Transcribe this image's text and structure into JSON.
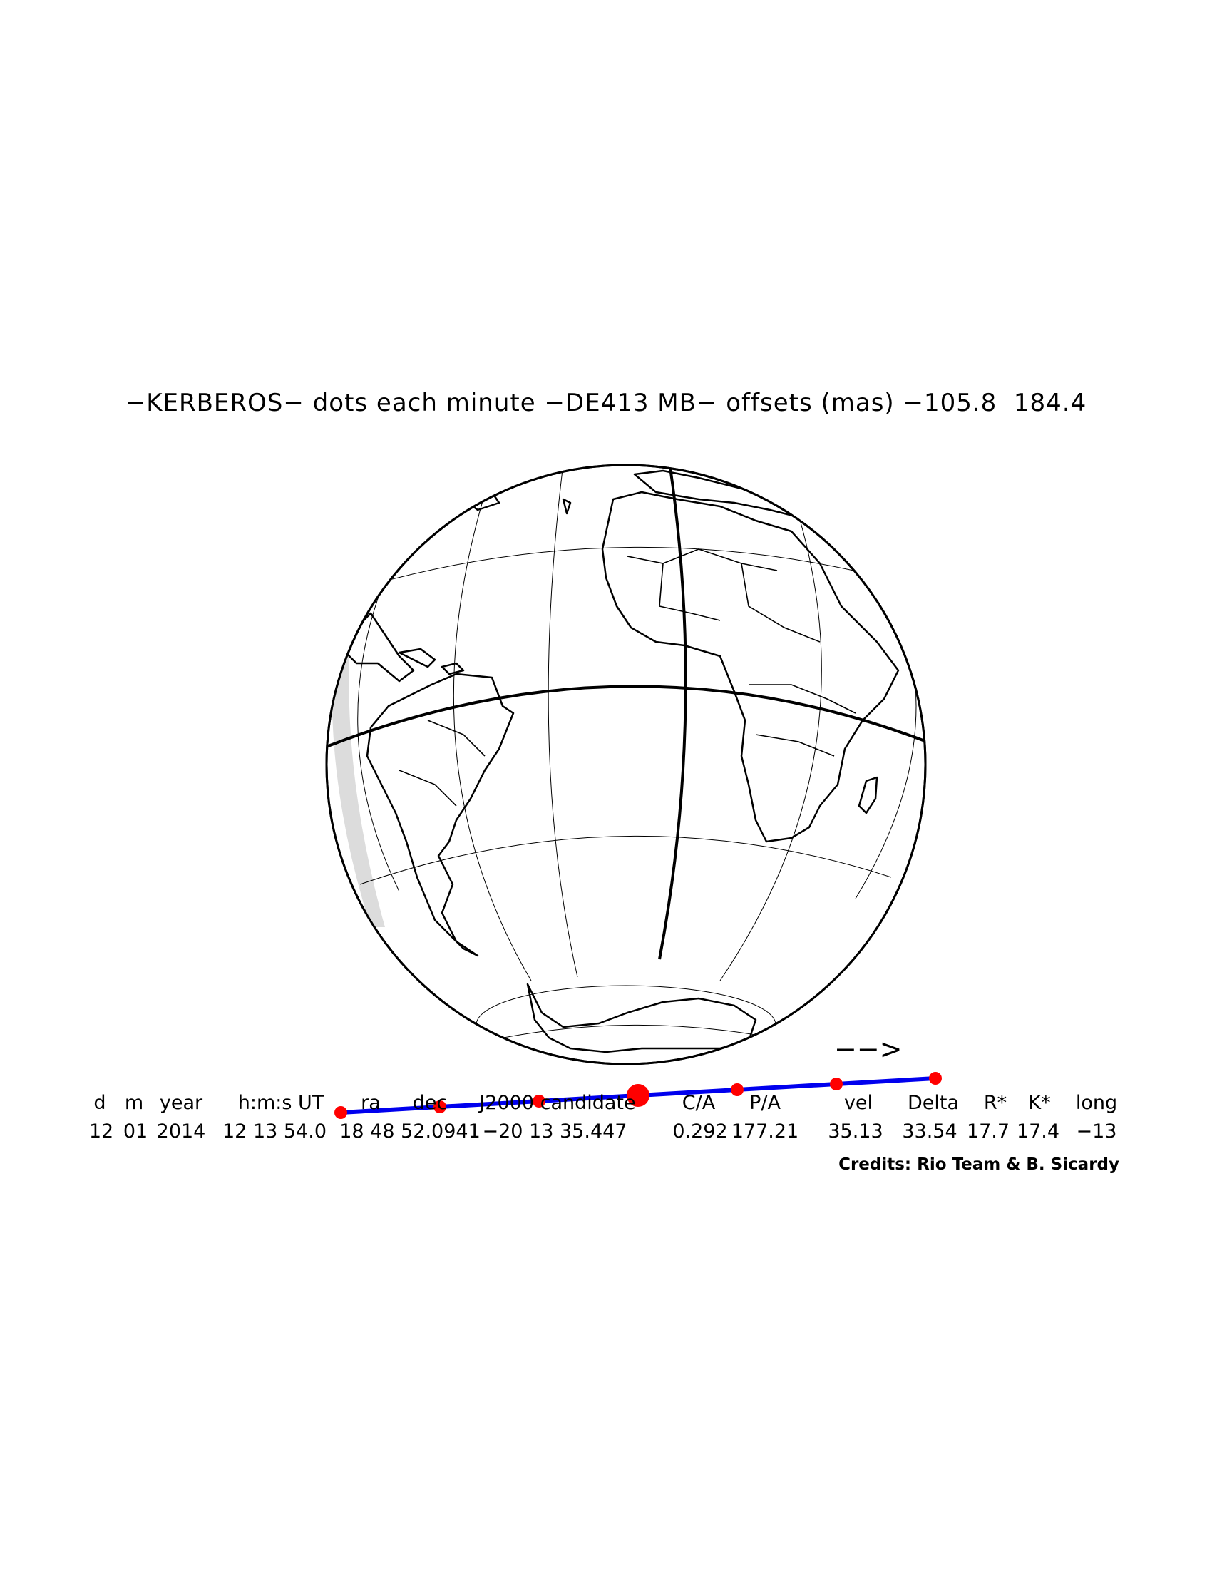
{
  "title": "−KERBEROS− dots each minute −DE413 MB− offsets (mas) −105.8  184.4",
  "direction_arrow": "−−>",
  "table": {
    "headers": [
      "d",
      "m",
      "year",
      "h:m:s UT",
      "ra",
      "dec",
      "J2000 candidate",
      "C/A",
      "P/A",
      "vel",
      "Delta",
      "R*",
      "K*",
      "long"
    ],
    "values": [
      "12",
      "01",
      "2014",
      "12 13 54.0",
      "18 48 52.0941",
      "−20 13 35.447",
      "0.292",
      "177.21",
      "35.13",
      "33.54",
      "17.7",
      "17.4",
      "−13"
    ]
  },
  "credits": "Credits: Rio Team & B. Sicardy",
  "colors": {
    "track": "#0000ee",
    "dots": "#ff0000",
    "ink": "#000000",
    "limb_shade": "#d8d8d8"
  }
}
